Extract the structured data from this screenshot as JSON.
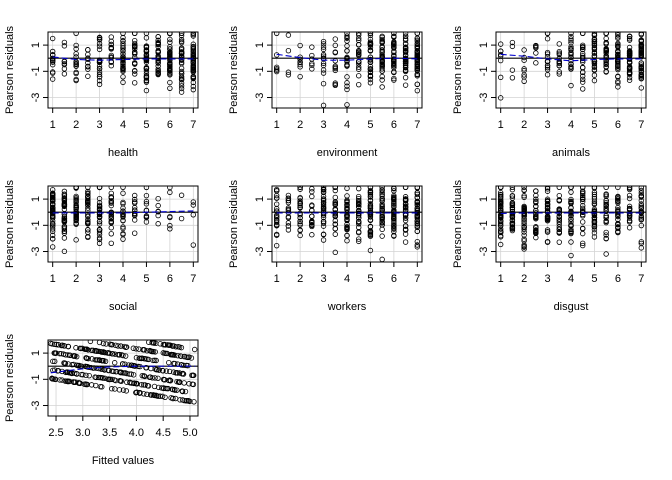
{
  "colors": {
    "background": "#ffffff",
    "points": "#000000",
    "grid": "#d3d3d3",
    "zero_line": "#000000",
    "smooth": "#0000cc"
  },
  "chart_data": [
    {
      "type": "scatter",
      "id": "health",
      "xlabel": "health",
      "ylabel": "Pearson residuals",
      "xlim": [
        0.8,
        7.2
      ],
      "ylim": [
        -3.8,
        2.0
      ],
      "xticks": [
        1,
        2,
        3,
        4,
        5,
        6,
        7
      ],
      "yticks": [
        -3,
        -1,
        1
      ],
      "grid": true,
      "zero_line": 0,
      "discrete_x": true,
      "x_values": [
        1,
        1.5,
        2,
        2.5,
        3,
        3.5,
        4,
        4.5,
        5,
        5.5,
        6,
        6.5,
        7
      ],
      "density": [
        14,
        8,
        16,
        10,
        24,
        14,
        30,
        22,
        36,
        30,
        42,
        36,
        44
      ],
      "smooth_x": [
        1,
        2,
        3,
        4,
        5,
        6,
        7
      ],
      "smooth_y": [
        0.1,
        -0.1,
        -0.15,
        -0.1,
        -0.05,
        -0.05,
        -0.05
      ]
    },
    {
      "type": "scatter",
      "id": "environment",
      "xlabel": "environment",
      "ylabel": "Pearson residuals",
      "xlim": [
        0.8,
        7.2
      ],
      "ylim": [
        -3.8,
        2.0
      ],
      "xticks": [
        1,
        2,
        3,
        4,
        5,
        6,
        7
      ],
      "yticks": [
        -3,
        -1,
        1
      ],
      "grid": true,
      "zero_line": 0,
      "discrete_x": true,
      "x_values": [
        1,
        1.5,
        2,
        2.5,
        3,
        3.5,
        4,
        4.5,
        5,
        5.5,
        6,
        6.5,
        7
      ],
      "density": [
        6,
        4,
        8,
        6,
        14,
        12,
        24,
        22,
        34,
        34,
        42,
        40,
        46
      ],
      "smooth_x": [
        1,
        2,
        3,
        4,
        5,
        6,
        7
      ],
      "smooth_y": [
        0.3,
        0.05,
        -0.15,
        -0.15,
        -0.05,
        0.0,
        -0.05
      ]
    },
    {
      "type": "scatter",
      "id": "animals",
      "xlabel": "animals",
      "ylabel": "Pearson residuals",
      "xlim": [
        0.8,
        7.2
      ],
      "ylim": [
        -3.8,
        2.0
      ],
      "xticks": [
        1,
        2,
        3,
        4,
        5,
        6,
        7
      ],
      "yticks": [
        -3,
        -1,
        1
      ],
      "grid": true,
      "zero_line": 0,
      "discrete_x": true,
      "x_values": [
        1,
        1.5,
        2,
        2.5,
        3,
        3.5,
        4,
        4.5,
        5,
        5.5,
        6,
        6.5,
        7
      ],
      "density": [
        8,
        4,
        8,
        6,
        14,
        12,
        22,
        22,
        32,
        32,
        40,
        40,
        46
      ],
      "smooth_x": [
        1,
        2,
        3,
        4,
        5,
        6,
        7
      ],
      "smooth_y": [
        0.3,
        0.15,
        -0.05,
        -0.2,
        -0.1,
        -0.05,
        -0.05
      ]
    },
    {
      "type": "scatter",
      "id": "social",
      "xlabel": "social",
      "ylabel": "Pearson residuals",
      "xlim": [
        0.8,
        7.2
      ],
      "ylim": [
        -3.8,
        2.0
      ],
      "xticks": [
        1,
        2,
        3,
        4,
        5,
        6,
        7
      ],
      "yticks": [
        -3,
        -1,
        1
      ],
      "grid": true,
      "zero_line": 0,
      "discrete_x": true,
      "x_values": [
        1,
        1.5,
        2,
        2.5,
        3,
        3.5,
        4,
        4.5,
        5,
        5.5,
        6,
        6.5,
        7
      ],
      "density": [
        50,
        40,
        40,
        34,
        30,
        24,
        20,
        14,
        10,
        6,
        6,
        2,
        4
      ],
      "smooth_x": [
        1,
        2,
        3,
        4,
        5,
        6,
        7
      ],
      "smooth_y": [
        -0.05,
        -0.05,
        -0.05,
        -0.05,
        0.0,
        0.05,
        0.1
      ]
    },
    {
      "type": "scatter",
      "id": "workers",
      "xlabel": "workers",
      "ylabel": "Pearson residuals",
      "xlim": [
        0.8,
        7.2
      ],
      "ylim": [
        -3.8,
        2.0
      ],
      "xticks": [
        1,
        2,
        3,
        4,
        5,
        6,
        7
      ],
      "yticks": [
        -3,
        -1,
        1
      ],
      "grid": true,
      "zero_line": 0,
      "discrete_x": true,
      "x_values": [
        1,
        1.5,
        2,
        2.5,
        3,
        3.5,
        4,
        4.5,
        5,
        5.5,
        6,
        6.5,
        7
      ],
      "density": [
        22,
        16,
        26,
        20,
        30,
        26,
        36,
        30,
        40,
        32,
        40,
        34,
        42
      ],
      "smooth_x": [
        1,
        2,
        3,
        4,
        5,
        6,
        7
      ],
      "smooth_y": [
        -0.05,
        -0.05,
        -0.05,
        -0.05,
        -0.05,
        -0.05,
        -0.05
      ]
    },
    {
      "type": "scatter",
      "id": "disgust",
      "xlabel": "disgust",
      "ylabel": "Pearson residuals",
      "xlim": [
        0.8,
        7.2
      ],
      "ylim": [
        -3.8,
        2.0
      ],
      "xticks": [
        1,
        2,
        3,
        4,
        5,
        6,
        7
      ],
      "yticks": [
        -3,
        -1,
        1
      ],
      "grid": true,
      "zero_line": 0,
      "discrete_x": true,
      "x_values": [
        1,
        1.5,
        2,
        2.5,
        3,
        3.5,
        4,
        4.5,
        5,
        5.5,
        6,
        6.5,
        7
      ],
      "density": [
        50,
        34,
        40,
        30,
        34,
        28,
        34,
        26,
        34,
        26,
        30,
        20,
        24
      ],
      "smooth_x": [
        1,
        2,
        3,
        4,
        5,
        6,
        7
      ],
      "smooth_y": [
        -0.1,
        -0.05,
        -0.05,
        -0.05,
        -0.05,
        -0.05,
        -0.05
      ]
    },
    {
      "type": "scatter",
      "id": "fitted",
      "xlabel": "Fitted values",
      "ylabel": "Pearson residuals",
      "xlim": [
        2.35,
        5.15
      ],
      "ylim": [
        -3.8,
        2.0
      ],
      "xticks": [
        2.5,
        3.0,
        3.5,
        4.0,
        4.5,
        5.0
      ],
      "xtick_labels": [
        "2.5",
        "3.0",
        "3.5",
        "4.0",
        "4.5",
        "5.0"
      ],
      "yticks": [
        -3,
        -1,
        1
      ],
      "grid": true,
      "zero_line": 0,
      "discrete_x": false,
      "fitted_bands": {
        "x_range": [
          2.4,
          5.1
        ],
        "levels": [
          1,
          2,
          3,
          4,
          5,
          6,
          7
        ],
        "residual_scale": 1.5
      },
      "smooth_x": [
        2.4,
        3.0,
        3.5,
        4.0,
        4.5,
        5.1
      ],
      "smooth_y": [
        -0.5,
        -0.2,
        -0.05,
        0.0,
        0.0,
        0.0
      ]
    }
  ]
}
